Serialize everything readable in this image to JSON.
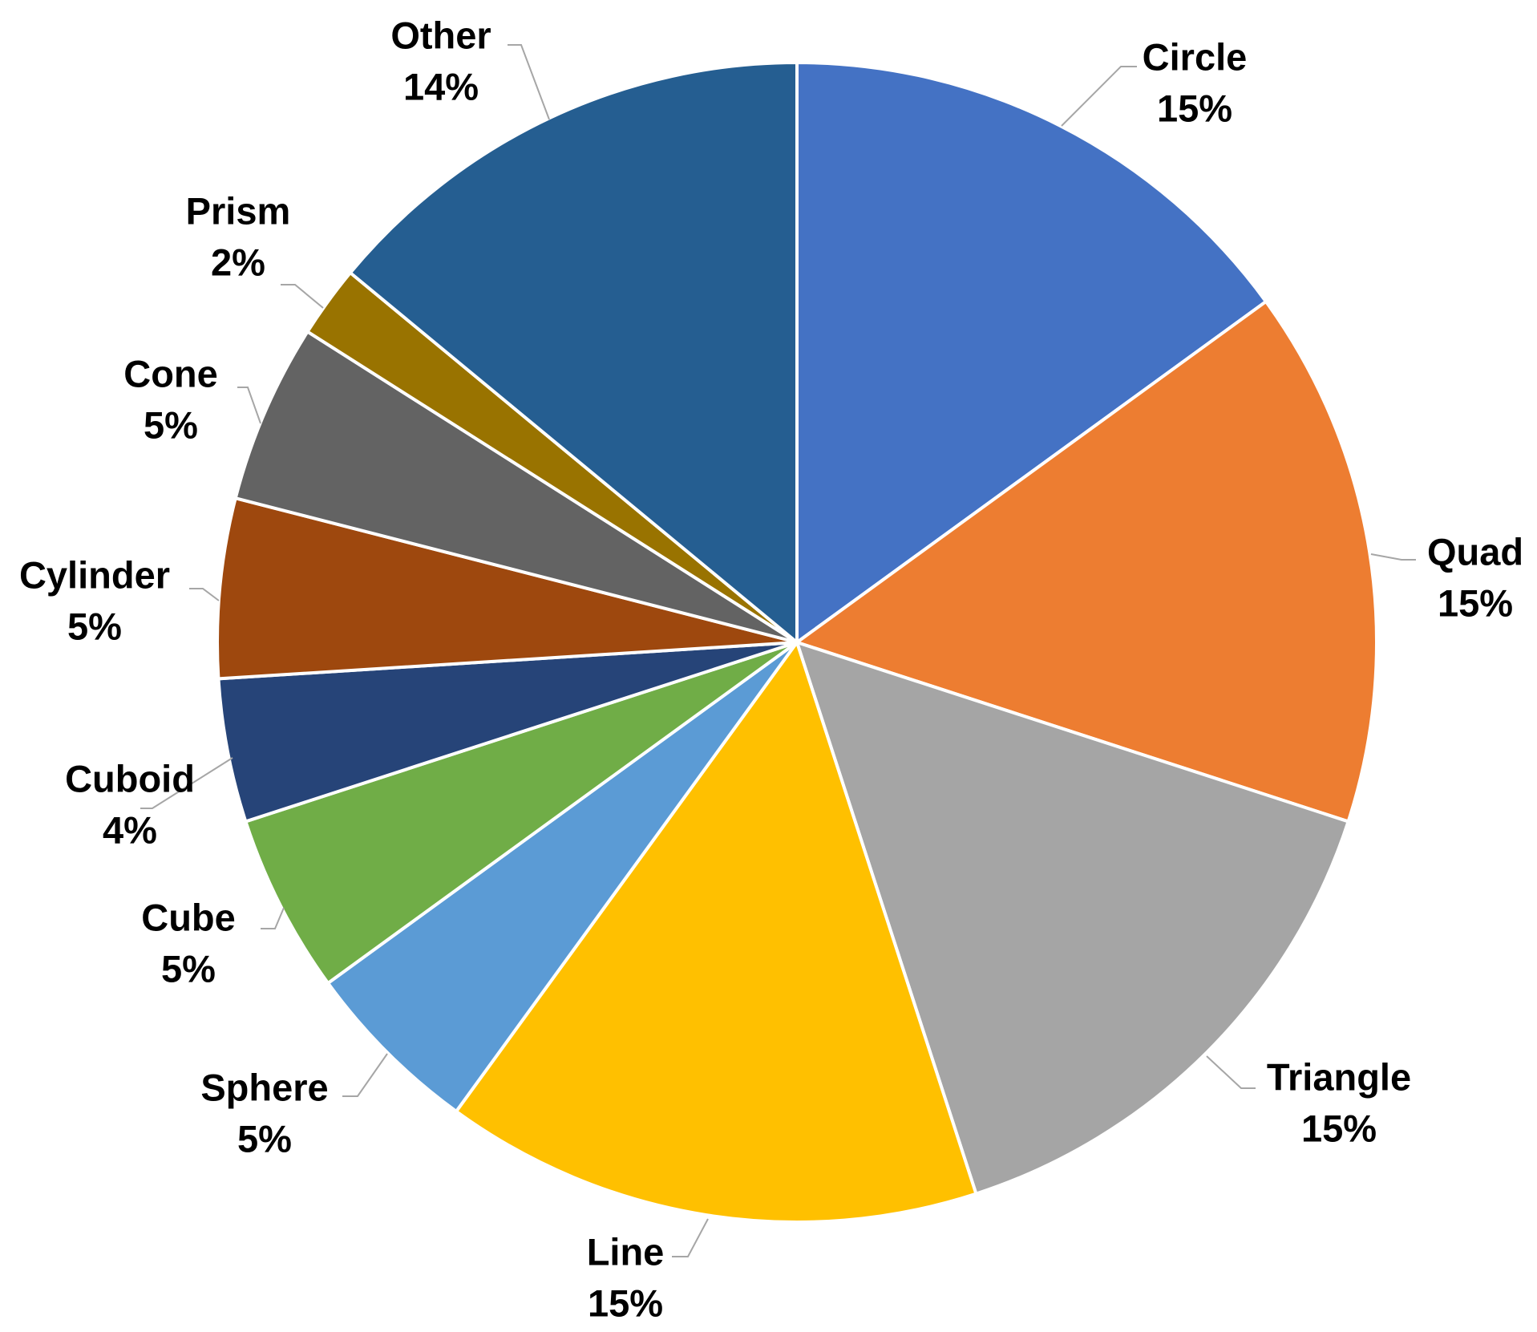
{
  "chart_data": {
    "type": "pie",
    "title": "",
    "start_angle_deg": 0,
    "direction": "clockwise",
    "label_color": "#000000",
    "leader_color": "#a6a6a6",
    "border_color": "#ffffff",
    "slices": [
      {
        "label": "Circle",
        "value": 15,
        "pct_label": "15%",
        "color": "#4472c4"
      },
      {
        "label": "Quad",
        "value": 15,
        "pct_label": "15%",
        "color": "#ed7d31"
      },
      {
        "label": "Triangle",
        "value": 15,
        "pct_label": "15%",
        "color": "#a5a5a5"
      },
      {
        "label": "Line",
        "value": 15,
        "pct_label": "15%",
        "color": "#ffc000"
      },
      {
        "label": "Sphere",
        "value": 5,
        "pct_label": "5%",
        "color": "#5b9bd5"
      },
      {
        "label": "Cube",
        "value": 5,
        "pct_label": "5%",
        "color": "#70ad47"
      },
      {
        "label": "Cuboid",
        "value": 4,
        "pct_label": "4%",
        "color": "#264478"
      },
      {
        "label": "Cylinder",
        "value": 5,
        "pct_label": "5%",
        "color": "#9e480e"
      },
      {
        "label": "Cone",
        "value": 5,
        "pct_label": "5%",
        "color": "#636363"
      },
      {
        "label": "Prism",
        "value": 2,
        "pct_label": "2%",
        "color": "#997300"
      },
      {
        "label": "Other",
        "value": 14,
        "pct_label": "14%",
        "color": "#255e91"
      }
    ]
  }
}
